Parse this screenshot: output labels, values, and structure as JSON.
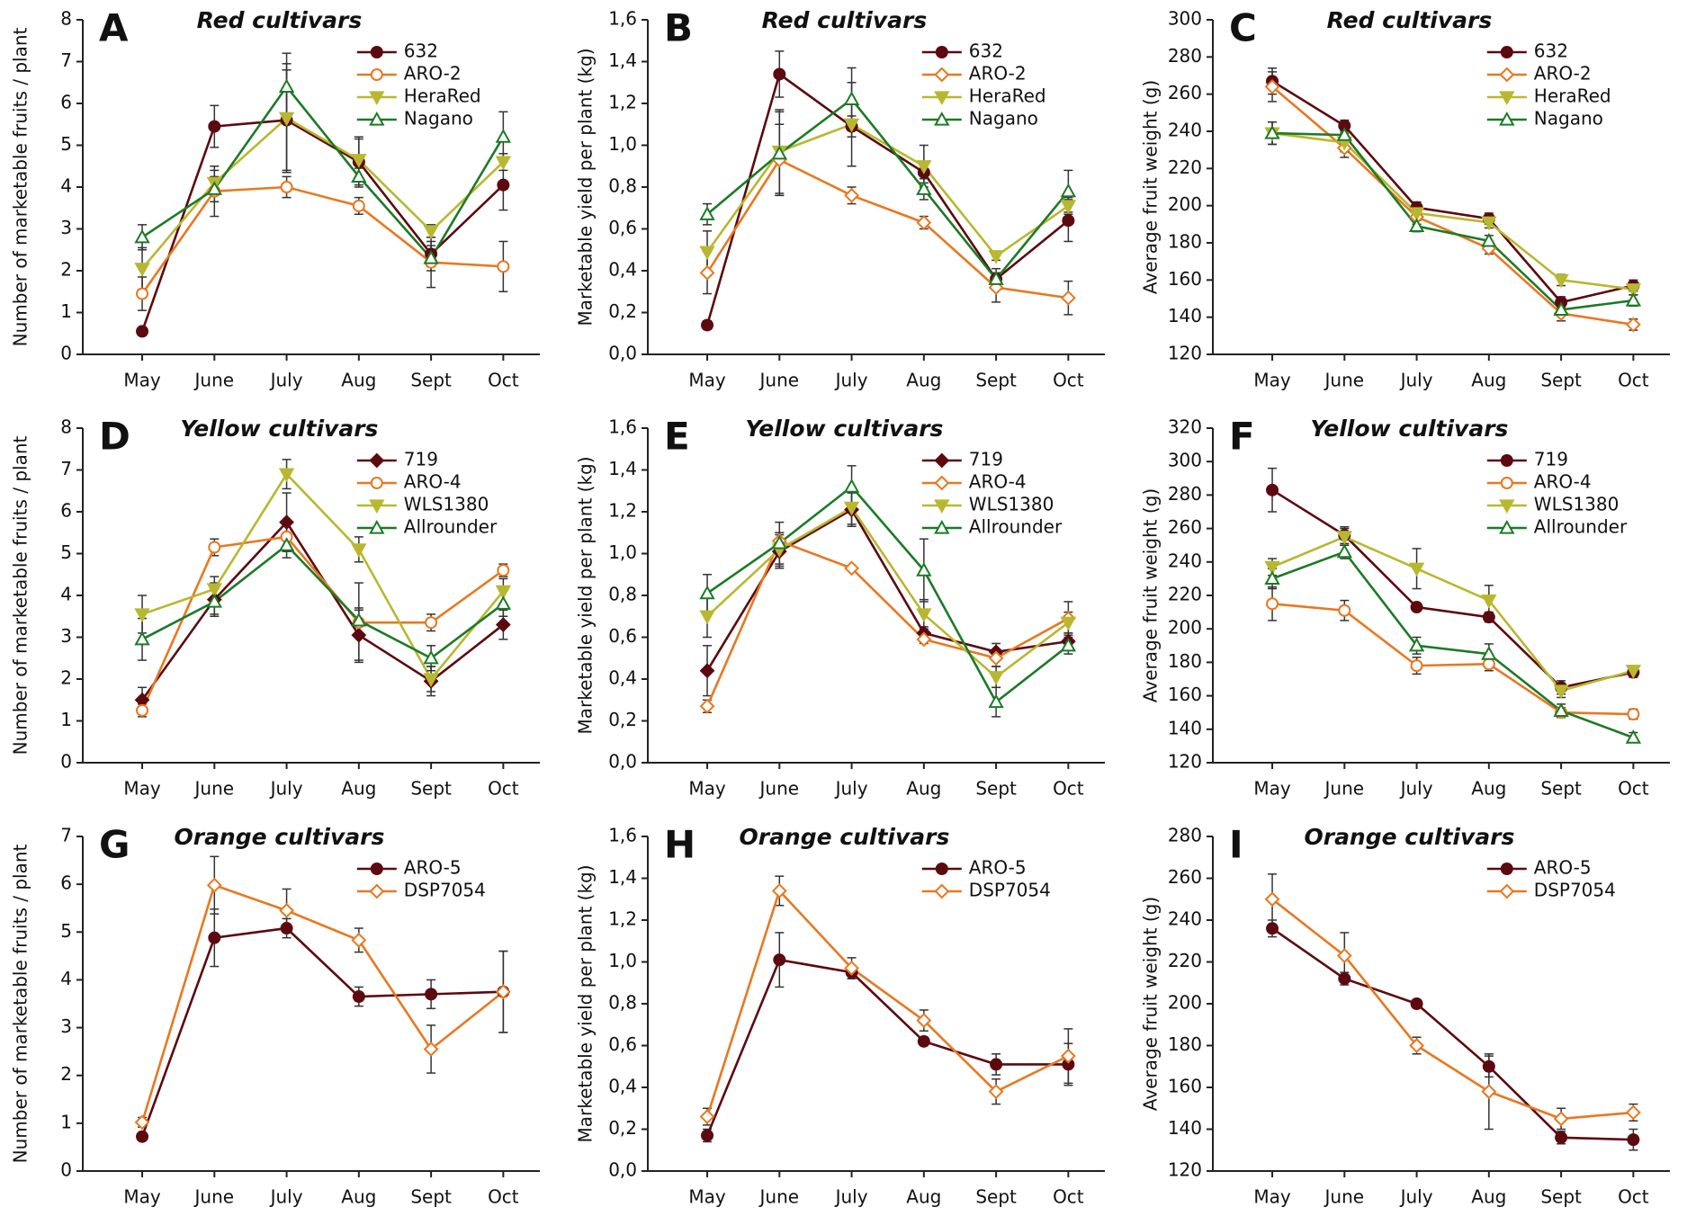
{
  "chart_data": [
    {
      "type": "line",
      "panel": "A",
      "title": "Red cultivars",
      "ylabel": "Number of marketable fruits / plant",
      "categories": [
        "May",
        "June",
        "July",
        "Aug",
        "Sept",
        "Oct"
      ],
      "ylim": [
        0,
        8
      ],
      "yticks": [
        0,
        1,
        2,
        3,
        4,
        5,
        6,
        7,
        8
      ],
      "series": [
        {
          "name": "632",
          "color": "#5c0a10",
          "marker": "circle",
          "values": [
            0.55,
            5.45,
            5.6,
            4.6,
            2.4,
            4.05
          ],
          "errors": [
            0.1,
            0.5,
            1.2,
            0.6,
            0.3,
            0.6
          ]
        },
        {
          "name": "ARO-2",
          "color": "#e87820",
          "marker": "open-circle",
          "values": [
            1.45,
            3.9,
            4.0,
            3.55,
            2.2,
            2.1
          ],
          "errors": [
            0.4,
            0.6,
            0.25,
            0.2,
            0.6,
            0.6
          ]
        },
        {
          "name": "HeraRed",
          "color": "#b8b830",
          "marker": "triangle-down",
          "values": [
            2.05,
            4.1,
            5.65,
            4.65,
            2.95,
            4.6
          ],
          "errors": [
            0.5,
            0.3,
            1.3,
            0.5,
            0.15,
            0.2
          ]
        },
        {
          "name": "Nagano",
          "color": "#1c7a26",
          "marker": "open-triangle",
          "values": [
            2.8,
            3.95,
            6.4,
            4.25,
            2.3,
            5.2
          ],
          "errors": [
            0.3,
            0.3,
            0.8,
            0.2,
            0.3,
            0.6
          ]
        }
      ]
    },
    {
      "type": "line",
      "panel": "B",
      "title": "Red cultivars",
      "ylabel": "Marketable yield per plant (kg)",
      "categories": [
        "May",
        "June",
        "July",
        "Aug",
        "Sept",
        "Oct"
      ],
      "ylim": [
        0,
        1.6
      ],
      "yticks": [
        {
          "value": 0,
          "label": "0,0"
        },
        {
          "value": 0.2,
          "label": "0,2"
        },
        {
          "value": 0.4,
          "label": "0,4"
        },
        {
          "value": 0.6,
          "label": "0,6"
        },
        {
          "value": 0.8,
          "label": "0,8"
        },
        {
          "value": 1.0,
          "label": "1,0"
        },
        {
          "value": 1.2,
          "label": "1,2"
        },
        {
          "value": 1.4,
          "label": "1,4"
        },
        {
          "value": 1.6,
          "label": "1,6"
        }
      ],
      "series": [
        {
          "name": "632",
          "color": "#5c0a10",
          "marker": "circle",
          "values": [
            0.14,
            1.34,
            1.09,
            0.87,
            0.36,
            0.64
          ],
          "errors": [
            0.02,
            0.11,
            0.05,
            0.05,
            0.03,
            0.1
          ]
        },
        {
          "name": "ARO-2",
          "color": "#e87820",
          "marker": "open-diamond",
          "values": [
            0.39,
            0.93,
            0.76,
            0.63,
            0.32,
            0.27
          ],
          "errors": [
            0.1,
            0.17,
            0.04,
            0.03,
            0.07,
            0.08
          ]
        },
        {
          "name": "HeraRed",
          "color": "#b8b830",
          "marker": "triangle-down",
          "values": [
            0.49,
            0.97,
            1.1,
            0.9,
            0.47,
            0.71
          ],
          "errors": [
            0.1,
            0.2,
            0.2,
            0.1,
            0.02,
            0.04
          ]
        },
        {
          "name": "Nagano",
          "color": "#1c7a26",
          "marker": "open-triangle",
          "values": [
            0.67,
            0.96,
            1.22,
            0.79,
            0.36,
            0.78
          ],
          "errors": [
            0.05,
            0.2,
            0.15,
            0.05,
            0.05,
            0.1
          ]
        }
      ]
    },
    {
      "type": "line",
      "panel": "C",
      "title": "Red cultivars",
      "ylabel": "Average fruit weight (g)",
      "categories": [
        "May",
        "June",
        "July",
        "Aug",
        "Sept",
        "Oct"
      ],
      "ylim": [
        120,
        300
      ],
      "yticks": [
        120,
        140,
        160,
        180,
        200,
        220,
        240,
        260,
        280,
        300
      ],
      "series": [
        {
          "name": "632",
          "color": "#5c0a10",
          "marker": "circle",
          "values": [
            267,
            243,
            199,
            193,
            148,
            157
          ],
          "errors": [
            7,
            3,
            3,
            3,
            3,
            3
          ]
        },
        {
          "name": "ARO-2",
          "color": "#e87820",
          "marker": "open-diamond",
          "values": [
            264,
            231,
            194,
            177,
            142,
            136
          ],
          "errors": [
            8,
            5,
            4,
            3,
            4,
            3
          ]
        },
        {
          "name": "HeraRed",
          "color": "#b8b830",
          "marker": "triangle-down",
          "values": [
            239,
            234,
            196,
            191,
            160,
            155
          ],
          "errors": [
            6,
            5,
            4,
            3,
            3,
            3
          ]
        },
        {
          "name": "Nagano",
          "color": "#1c7a26",
          "marker": "open-triangle",
          "values": [
            239,
            238,
            189,
            181,
            144,
            149
          ],
          "errors": [
            6,
            4,
            3,
            3,
            3,
            3
          ]
        }
      ]
    },
    {
      "type": "line",
      "panel": "D",
      "title": "Yellow cultivars",
      "ylabel": "Number of marketable fruits / plant",
      "categories": [
        "May",
        "June",
        "July",
        "Aug",
        "Sept",
        "Oct"
      ],
      "ylim": [
        0,
        8
      ],
      "yticks": [
        0,
        1,
        2,
        3,
        4,
        5,
        6,
        7,
        8
      ],
      "series": [
        {
          "name": "719",
          "color": "#5c0a10",
          "marker": "diamond",
          "values": [
            1.5,
            3.9,
            5.75,
            3.05,
            1.95,
            3.3
          ],
          "errors": [
            0.3,
            0.4,
            0.7,
            0.6,
            0.35,
            0.35
          ]
        },
        {
          "name": "ARO-4",
          "color": "#e87820",
          "marker": "open-circle",
          "values": [
            1.25,
            5.15,
            5.4,
            3.35,
            3.35,
            4.6
          ],
          "errors": [
            0.15,
            0.2,
            0.3,
            0.95,
            0.2,
            0.15
          ]
        },
        {
          "name": "WLS1380",
          "color": "#b8b830",
          "marker": "triangle-down",
          "values": [
            3.55,
            4.15,
            6.9,
            5.1,
            2.0,
            4.1
          ],
          "errors": [
            0.45,
            0.3,
            0.35,
            0.3,
            0.3,
            0.3
          ]
        },
        {
          "name": "Allrounder",
          "color": "#1c7a26",
          "marker": "open-triangle",
          "values": [
            2.95,
            3.85,
            5.2,
            3.4,
            2.5,
            3.8
          ],
          "errors": [
            0.5,
            0.3,
            0.3,
            0.3,
            0.3,
            0.3
          ]
        }
      ]
    },
    {
      "type": "line",
      "panel": "E",
      "title": "Yellow cultivars",
      "ylabel": "Marketable yield per plant (kg)",
      "categories": [
        "May",
        "June",
        "July",
        "Aug",
        "Sept",
        "Oct"
      ],
      "ylim": [
        0,
        1.6
      ],
      "yticks": [
        {
          "value": 0,
          "label": "0,0"
        },
        {
          "value": 0.2,
          "label": "0,2"
        },
        {
          "value": 0.4,
          "label": "0,4"
        },
        {
          "value": 0.6,
          "label": "0,6"
        },
        {
          "value": 0.8,
          "label": "0,8"
        },
        {
          "value": 1.0,
          "label": "1,0"
        },
        {
          "value": 1.2,
          "label": "1,2"
        },
        {
          "value": 1.4,
          "label": "1,4"
        },
        {
          "value": 1.6,
          "label": "1,6"
        }
      ],
      "series": [
        {
          "name": "719",
          "color": "#5c0a10",
          "marker": "diamond",
          "values": [
            0.44,
            1.01,
            1.21,
            0.62,
            0.53,
            0.58
          ],
          "errors": [
            0.12,
            0.08,
            0.08,
            0.03,
            0.04,
            0.04
          ]
        },
        {
          "name": "ARO-4",
          "color": "#e87820",
          "marker": "open-diamond",
          "values": [
            0.27,
            1.06,
            0.93,
            0.59,
            0.5,
            0.69
          ],
          "errors": [
            0.03,
            0.04,
            0.01,
            0.02,
            0.04,
            0.08
          ]
        },
        {
          "name": "WLS1380",
          "color": "#b8b830",
          "marker": "triangle-down",
          "values": [
            0.7,
            1.02,
            1.22,
            0.71,
            0.41,
            0.67
          ],
          "errors": [
            0.1,
            0.08,
            0.08,
            0.07,
            0.05,
            0.05
          ]
        },
        {
          "name": "Allrounder",
          "color": "#1c7a26",
          "marker": "open-triangle",
          "values": [
            0.81,
            1.05,
            1.32,
            0.92,
            0.29,
            0.56
          ],
          "errors": [
            0.09,
            0.1,
            0.1,
            0.15,
            0.07,
            0.04
          ]
        }
      ]
    },
    {
      "type": "line",
      "panel": "F",
      "title": "Yellow cultivars",
      "ylabel": "Average fruit weight (g)",
      "categories": [
        "May",
        "June",
        "July",
        "Aug",
        "Sept",
        "Oct"
      ],
      "ylim": [
        120,
        320
      ],
      "yticks": [
        120,
        140,
        160,
        180,
        200,
        220,
        240,
        260,
        280,
        300,
        320
      ],
      "series": [
        {
          "name": "719",
          "color": "#5c0a10",
          "marker": "circle",
          "values": [
            283,
            256,
            213,
            207,
            165,
            174
          ],
          "errors": [
            13,
            5,
            2,
            3,
            4,
            3
          ]
        },
        {
          "name": "ARO-4",
          "color": "#e87820",
          "marker": "open-circle",
          "values": [
            215,
            211,
            178,
            179,
            150,
            149
          ],
          "errors": [
            10,
            6,
            5,
            4,
            3,
            3
          ]
        },
        {
          "name": "WLS1380",
          "color": "#b8b830",
          "marker": "triangle-down",
          "values": [
            237,
            255,
            236,
            217,
            163,
            175
          ],
          "errors": [
            5,
            5,
            12,
            9,
            4,
            3
          ]
        },
        {
          "name": "Allrounder",
          "color": "#1c7a26",
          "marker": "open-triangle",
          "values": [
            230,
            246,
            190,
            185,
            151,
            135
          ],
          "errors": [
            6,
            4,
            5,
            6,
            4,
            3
          ]
        }
      ]
    },
    {
      "type": "line",
      "panel": "G",
      "title": "Orange cultivars",
      "ylabel": "Number of marketable fruits / plant",
      "categories": [
        "May",
        "June",
        "July",
        "Aug",
        "Sept",
        "Oct"
      ],
      "ylim": [
        0,
        7
      ],
      "yticks": [
        0,
        1,
        2,
        3,
        4,
        5,
        6,
        7
      ],
      "series": [
        {
          "name": "ARO-5",
          "color": "#5c0a10",
          "marker": "circle",
          "values": [
            0.72,
            4.88,
            5.08,
            3.65,
            3.7,
            3.75
          ],
          "errors": [
            0.08,
            0.6,
            0.2,
            0.2,
            0.3,
            0.85
          ]
        },
        {
          "name": "DSP7054",
          "color": "#e87820",
          "marker": "open-diamond",
          "values": [
            1.02,
            5.98,
            5.45,
            4.83,
            2.55,
            3.75
          ],
          "errors": [
            0.1,
            0.6,
            0.45,
            0.25,
            0.5,
            0.85
          ]
        }
      ]
    },
    {
      "type": "line",
      "panel": "H",
      "title": "Orange cultivars",
      "ylabel": "Marketable yield per plant (kg)",
      "categories": [
        "May",
        "June",
        "July",
        "Aug",
        "Sept",
        "Oct"
      ],
      "ylim": [
        0,
        1.6
      ],
      "yticks": [
        {
          "value": 0,
          "label": "0,0"
        },
        {
          "value": 0.2,
          "label": "0,2"
        },
        {
          "value": 0.4,
          "label": "0,4"
        },
        {
          "value": 0.6,
          "label": "0,6"
        },
        {
          "value": 0.8,
          "label": "0,8"
        },
        {
          "value": 1.0,
          "label": "1,0"
        },
        {
          "value": 1.2,
          "label": "1,2"
        },
        {
          "value": 1.4,
          "label": "1,4"
        },
        {
          "value": 1.6,
          "label": "1,6"
        }
      ],
      "series": [
        {
          "name": "ARO-5",
          "color": "#5c0a10",
          "marker": "circle",
          "values": [
            0.17,
            1.01,
            0.95,
            0.62,
            0.51,
            0.51
          ],
          "errors": [
            0.03,
            0.13,
            0.03,
            0.02,
            0.05,
            0.1
          ]
        },
        {
          "name": "DSP7054",
          "color": "#e87820",
          "marker": "open-diamond",
          "values": [
            0.26,
            1.34,
            0.97,
            0.72,
            0.38,
            0.55
          ],
          "errors": [
            0.04,
            0.07,
            0.05,
            0.05,
            0.06,
            0.13
          ]
        }
      ]
    },
    {
      "type": "line",
      "panel": "I",
      "title": "Orange cultivars",
      "ylabel": "Average fruit weight (g)",
      "categories": [
        "May",
        "June",
        "July",
        "Aug",
        "Sept",
        "Oct"
      ],
      "ylim": [
        120,
        280
      ],
      "yticks": [
        120,
        140,
        160,
        180,
        200,
        220,
        240,
        260,
        280
      ],
      "series": [
        {
          "name": "ARO-5",
          "color": "#5c0a10",
          "marker": "circle",
          "values": [
            236,
            212,
            200,
            170,
            136,
            135
          ],
          "errors": [
            4,
            3,
            2,
            5,
            3,
            5
          ]
        },
        {
          "name": "DSP7054",
          "color": "#e87820",
          "marker": "open-diamond",
          "values": [
            250,
            223,
            180,
            158,
            145,
            148
          ],
          "errors": [
            12,
            11,
            4,
            18,
            5,
            4
          ]
        }
      ]
    }
  ]
}
